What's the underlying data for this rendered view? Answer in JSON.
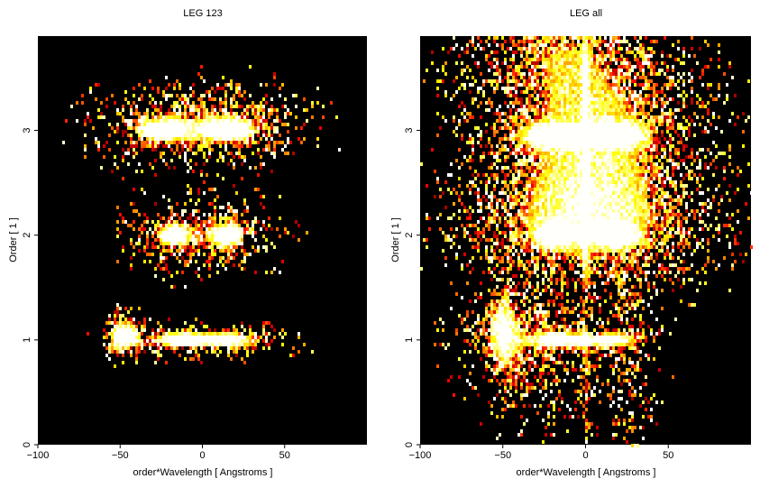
{
  "chart_data": [
    {
      "type": "heatmap",
      "title": "LEG 123",
      "xlabel": "order*Wavelength [ Angstroms ]",
      "ylabel": "Order [ 1 ]",
      "xlim": [
        -100,
        100
      ],
      "ylim": [
        0,
        3.9
      ],
      "xticks": [
        -100,
        -50,
        0,
        50
      ],
      "yticks": [
        0,
        1,
        2,
        3
      ],
      "colormap": "black-red-yellow-white",
      "background": "#000000",
      "blobs": [
        {
          "x": -25,
          "y": 3.0,
          "sx": 11,
          "sy": 0.07,
          "i": 1.0
        },
        {
          "x": 15,
          "y": 3.0,
          "sx": 11,
          "sy": 0.07,
          "i": 1.0
        },
        {
          "x": -20,
          "y": 3.05,
          "sx": 28,
          "sy": 0.22,
          "i": 0.45
        },
        {
          "x": 20,
          "y": 3.05,
          "sx": 28,
          "sy": 0.22,
          "i": 0.45
        },
        {
          "x": -18,
          "y": 2.0,
          "sx": 7,
          "sy": 0.08,
          "i": 0.95
        },
        {
          "x": 15,
          "y": 2.0,
          "sx": 7,
          "sy": 0.08,
          "i": 0.95
        },
        {
          "x": -15,
          "y": 2.0,
          "sx": 22,
          "sy": 0.2,
          "i": 0.35
        },
        {
          "x": 15,
          "y": 2.0,
          "sx": 22,
          "sy": 0.2,
          "i": 0.35
        },
        {
          "x": -12,
          "y": 1.0,
          "sx": 10,
          "sy": 0.05,
          "i": 1.0
        },
        {
          "x": 12,
          "y": 1.0,
          "sx": 13,
          "sy": 0.05,
          "i": 1.0
        },
        {
          "x": -45,
          "y": 1.05,
          "sx": 5,
          "sy": 0.12,
          "i": 0.85
        },
        {
          "x": -52,
          "y": 1.05,
          "sx": 4,
          "sy": 0.12,
          "i": 0.7
        },
        {
          "x": -30,
          "y": 1.0,
          "sx": 18,
          "sy": 0.09,
          "i": 0.5
        },
        {
          "x": 25,
          "y": 1.0,
          "sx": 20,
          "sy": 0.1,
          "i": 0.4
        }
      ]
    },
    {
      "type": "heatmap",
      "title": "LEG all",
      "xlabel": "order*Wavelength [ Angstroms ]",
      "ylabel": "Order [ 1 ]",
      "xlim": [
        -100,
        100
      ],
      "ylim": [
        0,
        3.9
      ],
      "xticks": [
        -100,
        -50,
        0,
        50
      ],
      "yticks": [
        0,
        1,
        2,
        3
      ],
      "colormap": "black-red-yellow-white",
      "background": "#000000",
      "blobs": [
        {
          "x": -20,
          "y": 2.95,
          "sx": 12,
          "sy": 0.07,
          "i": 1.0
        },
        {
          "x": 18,
          "y": 2.95,
          "sx": 12,
          "sy": 0.07,
          "i": 1.0
        },
        {
          "x": -15,
          "y": 3.0,
          "sx": 35,
          "sy": 0.6,
          "i": 0.5
        },
        {
          "x": 20,
          "y": 3.0,
          "sx": 35,
          "sy": 0.6,
          "i": 0.5
        },
        {
          "x": -18,
          "y": 2.0,
          "sx": 8,
          "sy": 0.07,
          "i": 0.95
        },
        {
          "x": 18,
          "y": 2.0,
          "sx": 8,
          "sy": 0.07,
          "i": 0.95
        },
        {
          "x": -10,
          "y": 2.1,
          "sx": 40,
          "sy": 0.35,
          "i": 0.4
        },
        {
          "x": 15,
          "y": 2.1,
          "sx": 40,
          "sy": 0.35,
          "i": 0.4
        },
        {
          "x": -15,
          "y": 1.0,
          "sx": 12,
          "sy": 0.05,
          "i": 1.0
        },
        {
          "x": 15,
          "y": 1.0,
          "sx": 12,
          "sy": 0.05,
          "i": 1.0
        },
        {
          "x": -50,
          "y": 1.1,
          "sx": 6,
          "sy": 0.25,
          "i": 0.8
        },
        {
          "x": -35,
          "y": 1.0,
          "sx": 25,
          "sy": 0.3,
          "i": 0.45
        },
        {
          "x": 25,
          "y": 0.8,
          "sx": 12,
          "sy": 0.5,
          "i": 0.3
        },
        {
          "x": -30,
          "y": 0.6,
          "sx": 20,
          "sy": 0.6,
          "i": 0.15
        },
        {
          "x": 0,
          "y": 2.0,
          "sx": 1.5,
          "sy": 2.2,
          "i": 0.45
        },
        {
          "x": -20,
          "y": 3.8,
          "sx": 30,
          "sy": 0.3,
          "i": 0.4
        }
      ]
    }
  ]
}
